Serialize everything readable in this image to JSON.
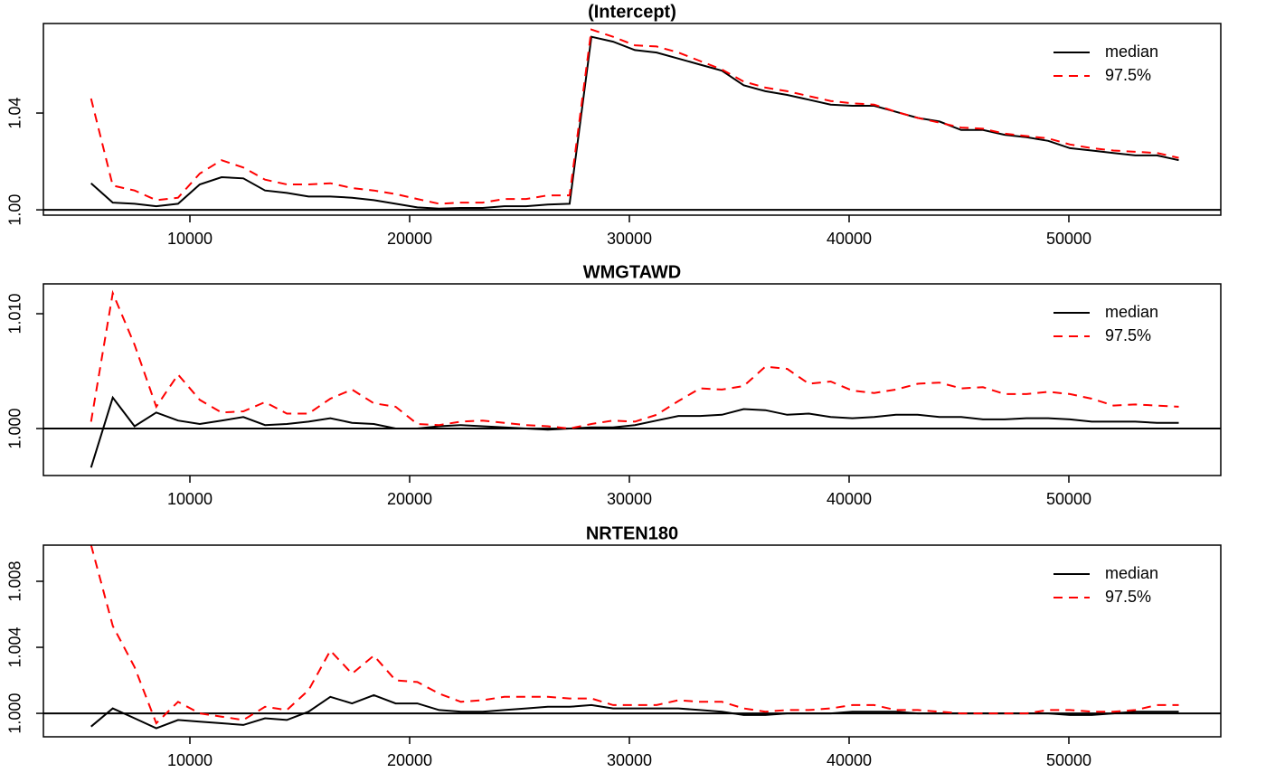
{
  "chart_data": [
    {
      "type": "line",
      "title": "(Intercept)",
      "x": [
        5500,
        6490,
        7480,
        8470,
        9460,
        10450,
        11440,
        12430,
        13420,
        14410,
        15400,
        16390,
        17380,
        18370,
        19360,
        20350,
        21340,
        22330,
        23320,
        24310,
        25300,
        26290,
        27280,
        28270,
        29260,
        30250,
        31240,
        32230,
        33220,
        34210,
        35200,
        36190,
        37180,
        38170,
        39160,
        40150,
        41140,
        42130,
        43120,
        44110,
        45100,
        46090,
        47080,
        48070,
        49060,
        50050,
        51040,
        52030,
        53020,
        54010,
        55000
      ],
      "series": [
        {
          "name": "median",
          "color": "#000000",
          "linestyle": "solid",
          "values": [
            1.011,
            1.003,
            1.0025,
            1.0015,
            1.0025,
            1.0105,
            1.0135,
            1.013,
            1.008,
            1.007,
            1.0055,
            1.0055,
            1.005,
            1.004,
            1.0025,
            1.001,
            1.0005,
            1.0008,
            1.0008,
            1.0015,
            1.0015,
            1.0022,
            1.0025,
            1.0715,
            1.0695,
            1.066,
            1.065,
            1.0625,
            1.06,
            1.0575,
            1.0515,
            1.049,
            1.0475,
            1.0455,
            1.0435,
            1.043,
            1.043,
            1.0405,
            1.038,
            1.0365,
            1.033,
            1.033,
            1.031,
            1.03,
            1.0285,
            1.0255,
            1.0245,
            1.0235,
            1.0225,
            1.0225,
            1.0205
          ]
        },
        {
          "name": "97.5%",
          "color": "#ff0000",
          "linestyle": "dashed",
          "values": [
            1.046,
            1.01,
            1.008,
            1.004,
            1.005,
            1.015,
            1.0205,
            1.0175,
            1.0125,
            1.0105,
            1.0105,
            1.011,
            1.009,
            1.008,
            1.0065,
            1.0045,
            1.0025,
            1.003,
            1.003,
            1.0045,
            1.0045,
            1.006,
            1.006,
            1.0745,
            1.0715,
            1.068,
            1.0675,
            1.065,
            1.0615,
            1.058,
            1.053,
            1.0505,
            1.049,
            1.047,
            1.045,
            1.044,
            1.0435,
            1.0405,
            1.038,
            1.036,
            1.034,
            1.0335,
            1.0315,
            1.0305,
            1.0295,
            1.027,
            1.0255,
            1.0245,
            1.024,
            1.0235,
            1.0215
          ]
        }
      ],
      "xlim": [
        3333,
        56914
      ],
      "xticks": [
        10000,
        20000,
        30000,
        40000,
        50000
      ],
      "ylim": [
        0.9978,
        1.077
      ],
      "yticks": [
        {
          "value": 1,
          "label": "1.00"
        },
        1.04
      ],
      "hline": 1,
      "legend": "top-right"
    },
    {
      "type": "line",
      "title": "WMGTAWD",
      "x": [
        5500,
        6490,
        7480,
        8470,
        9460,
        10450,
        11440,
        12430,
        13420,
        14410,
        15400,
        16390,
        17380,
        18370,
        19360,
        20350,
        21340,
        22330,
        23320,
        24310,
        25300,
        26290,
        27280,
        28270,
        29260,
        30250,
        31240,
        32230,
        33220,
        34210,
        35200,
        36190,
        37180,
        38170,
        39160,
        40150,
        41140,
        42130,
        43120,
        44110,
        45100,
        46090,
        47080,
        48070,
        49060,
        50050,
        51040,
        52030,
        53020,
        54010,
        55000
      ],
      "series": [
        {
          "name": "median",
          "color": "#000000",
          "linestyle": "solid",
          "values": [
            0.9966,
            1.0027,
            1.0002,
            1.0014,
            1.0007,
            1.0004,
            1.0007,
            1.001,
            1.0003,
            1.0004,
            1.0006,
            1.0009,
            1.0005,
            1.0004,
            1.0,
            1.0,
            1.0002,
            1.0003,
            1.0002,
            1.0001,
            1.0,
            0.9999,
            1.0,
            1.0001,
            1.0001,
            1.0003,
            1.0007,
            1.0011,
            1.0011,
            1.0012,
            1.0017,
            1.0016,
            1.0012,
            1.0013,
            1.001,
            1.0009,
            1.001,
            1.0012,
            1.0012,
            1.001,
            1.001,
            1.0008,
            1.0008,
            1.0009,
            1.0009,
            1.0008,
            1.0006,
            1.0006,
            1.0006,
            1.0005,
            1.0005
          ]
        },
        {
          "name": "97.5%",
          "color": "#ff0000",
          "linestyle": "dashed",
          "values": [
            1.0006,
            1.0118,
            1.0073,
            1.0019,
            1.0047,
            1.0025,
            1.0014,
            1.0015,
            1.0023,
            1.0013,
            1.0013,
            1.0026,
            1.0034,
            1.0022,
            1.0019,
            1.0004,
            1.0003,
            1.0006,
            1.0007,
            1.0005,
            1.0003,
            1.0002,
            1.0,
            1.0004,
            1.0007,
            1.0006,
            1.0012,
            1.0024,
            1.0035,
            1.0034,
            1.0037,
            1.0054,
            1.0052,
            1.0039,
            1.0041,
            1.0033,
            1.0031,
            1.0034,
            1.0039,
            1.004,
            1.0035,
            1.0036,
            1.003,
            1.003,
            1.0032,
            1.003,
            1.0026,
            1.002,
            1.0021,
            1.002,
            1.0019
          ]
        }
      ],
      "xlim": [
        3333,
        56914
      ],
      "xticks": [
        10000,
        20000,
        30000,
        40000,
        50000
      ],
      "ylim": [
        0.99591,
        1.0126
      ],
      "yticks": [
        {
          "value": 1,
          "label": "1.000"
        },
        {
          "value": 1.01,
          "label": "1.010"
        }
      ],
      "hline": 1,
      "legend": "top-right"
    },
    {
      "type": "line",
      "title": "NRTEN180",
      "x": [
        5500,
        6490,
        7480,
        8470,
        9460,
        10450,
        11440,
        12430,
        13420,
        14410,
        15400,
        16390,
        17380,
        18370,
        19360,
        20350,
        21340,
        22330,
        23320,
        24310,
        25300,
        26290,
        27280,
        28270,
        29260,
        30250,
        31240,
        32230,
        33220,
        34210,
        35200,
        36190,
        37180,
        38170,
        39160,
        40150,
        41140,
        42130,
        43120,
        44110,
        45100,
        46090,
        47080,
        48070,
        49060,
        50050,
        51040,
        52030,
        53020,
        54010,
        55000
      ],
      "series": [
        {
          "name": "median",
          "color": "#000000",
          "linestyle": "solid",
          "values": [
            0.9992,
            1.0003,
            0.9997,
            0.9991,
            0.9996,
            0.9995,
            0.9994,
            0.9993,
            0.9997,
            0.9996,
            1.0001,
            1.001,
            1.0006,
            1.0011,
            1.0006,
            1.0006,
            1.0002,
            1.0001,
            1.0001,
            1.0002,
            1.0003,
            1.0004,
            1.0004,
            1.0005,
            1.0003,
            1.0003,
            1.0003,
            1.0003,
            1.0002,
            1.0001,
            0.9999,
            0.9999,
            1.0,
            1.0,
            1.0,
            1.0001,
            1.0001,
            1.0001,
            1.0,
            1.0,
            1.0,
            1.0,
            1.0,
            1.0,
            1.0,
            0.9999,
            0.9999,
            1.0,
            1.0001,
            1.0001,
            1.0001
          ]
        },
        {
          "name": "97.5%",
          "color": "#ff0000",
          "linestyle": "dashed",
          "values": [
            1.0102,
            1.0053,
            1.0028,
            0.9994,
            1.0007,
            1.0,
            0.9998,
            0.9996,
            1.0004,
            1.0002,
            1.0014,
            1.0038,
            1.0024,
            1.0035,
            1.002,
            1.0019,
            1.0012,
            1.0007,
            1.0008,
            1.001,
            1.001,
            1.001,
            1.0009,
            1.0009,
            1.0005,
            1.0005,
            1.0005,
            1.0008,
            1.0007,
            1.0007,
            1.0003,
            1.0001,
            1.0002,
            1.0002,
            1.0003,
            1.0005,
            1.0005,
            1.0002,
            1.0002,
            1.0001,
            1.0,
            1.0,
            1.0,
            1.0,
            1.0002,
            1.0002,
            1.0001,
            1.0001,
            1.0002,
            1.0005,
            1.0005
          ]
        }
      ],
      "xlim": [
        3333,
        56914
      ],
      "xticks": [
        10000,
        20000,
        30000,
        40000,
        50000
      ],
      "ylim": [
        0.99858,
        1.01019
      ],
      "yticks": [
        {
          "value": 1,
          "label": "1.000"
        },
        {
          "value": 1.004,
          "label": "1.004"
        },
        {
          "value": 1.008,
          "label": "1.008"
        }
      ],
      "hline": 1,
      "legend": "top-right"
    }
  ]
}
